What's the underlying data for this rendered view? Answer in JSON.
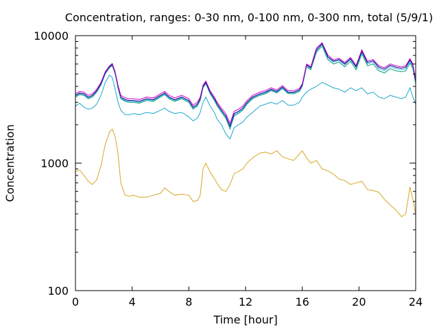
{
  "chart_data": {
    "type": "line",
    "title": "Concentration, ranges: 0-30 nm, 0-100 nm, 0-300 nm, total (5/9/1)",
    "xlabel": "Time [hour]",
    "ylabel": "Concentration",
    "xlim": [
      0,
      24
    ],
    "ylim": [
      100,
      10000
    ],
    "yscale": "log",
    "grid": false,
    "legend": "none",
    "x_ticks": [
      0,
      4,
      8,
      12,
      16,
      20,
      24
    ],
    "x_tick_labels": [
      "0",
      "4",
      "8",
      "12",
      "16",
      "20",
      "24"
    ],
    "y_ticks": [
      100,
      1000,
      10000
    ],
    "y_tick_labels": [
      "100",
      "1000",
      "10000"
    ],
    "series": [
      {
        "color": "#daa520",
        "x": [
          0,
          0.3,
          0.6,
          0.9,
          1.2,
          1.5,
          1.8,
          2.1,
          2.4,
          2.6,
          2.8,
          3.0,
          3.2,
          3.5,
          3.8,
          4.1,
          4.5,
          5.0,
          5.5,
          6.0,
          6.3,
          6.6,
          7.0,
          7.5,
          8.0,
          8.3,
          8.6,
          8.8,
          9.0,
          9.2,
          9.5,
          9.8,
          10.0,
          10.3,
          10.6,
          10.9,
          11.2,
          11.5,
          11.8,
          12.1,
          12.5,
          13.0,
          13.4,
          13.8,
          14.2,
          14.6,
          15.0,
          15.4,
          15.8,
          16.0,
          16.3,
          16.6,
          17.0,
          17.4,
          17.8,
          18.2,
          18.6,
          19.0,
          19.4,
          19.8,
          20.2,
          20.6,
          21.0,
          21.4,
          21.8,
          22.2,
          22.6,
          23.0,
          23.3,
          23.6,
          23.8,
          24.0
        ],
        "values": [
          860,
          880,
          800,
          720,
          680,
          740,
          950,
          1400,
          1750,
          1850,
          1600,
          1200,
          700,
          560,
          550,
          560,
          540,
          540,
          560,
          580,
          640,
          600,
          560,
          570,
          560,
          500,
          510,
          560,
          900,
          1000,
          850,
          760,
          690,
          620,
          600,
          680,
          830,
          860,
          900,
          1000,
          1100,
          1200,
          1220,
          1180,
          1250,
          1120,
          1080,
          1050,
          1180,
          1250,
          1100,
          1000,
          1050,
          900,
          870,
          820,
          750,
          730,
          680,
          700,
          720,
          620,
          610,
          590,
          520,
          470,
          430,
          380,
          400,
          650,
          520,
          400
        ]
      },
      {
        "color": "#1aa6cc",
        "x": [
          0,
          0.3,
          0.6,
          0.9,
          1.2,
          1.5,
          1.8,
          2.1,
          2.4,
          2.6,
          2.8,
          3.0,
          3.2,
          3.5,
          3.8,
          4.1,
          4.5,
          5.0,
          5.5,
          6.0,
          6.3,
          6.6,
          7.0,
          7.5,
          8.0,
          8.3,
          8.6,
          8.8,
          9.0,
          9.2,
          9.5,
          9.8,
          10.0,
          10.3,
          10.6,
          10.9,
          11.2,
          11.5,
          11.8,
          12.1,
          12.5,
          13.0,
          13.4,
          13.8,
          14.2,
          14.6,
          15.0,
          15.4,
          15.8,
          16.0,
          16.3,
          16.6,
          17.0,
          17.4,
          17.8,
          18.2,
          18.6,
          19.0,
          19.4,
          19.8,
          20.2,
          20.6,
          21.0,
          21.4,
          21.8,
          22.2,
          22.6,
          23.0,
          23.3,
          23.6,
          23.8,
          24.0
        ],
        "values": [
          2800,
          2950,
          2750,
          2650,
          2700,
          2900,
          3400,
          4300,
          4900,
          4700,
          3800,
          3000,
          2600,
          2400,
          2400,
          2450,
          2400,
          2500,
          2450,
          2600,
          2700,
          2550,
          2450,
          2500,
          2300,
          2150,
          2250,
          2500,
          3000,
          3300,
          2800,
          2500,
          2200,
          2000,
          1700,
          1550,
          1900,
          2000,
          2100,
          2300,
          2500,
          2800,
          2900,
          3000,
          2900,
          3100,
          2850,
          2850,
          3000,
          3300,
          3600,
          3800,
          4000,
          4300,
          4100,
          3900,
          3800,
          3600,
          3900,
          3700,
          3900,
          3500,
          3600,
          3300,
          3200,
          3400,
          3300,
          3200,
          3300,
          3900,
          3300,
          2900
        ]
      },
      {
        "color": "#009e73",
        "x": [
          0,
          0.3,
          0.6,
          0.9,
          1.2,
          1.5,
          1.8,
          2.1,
          2.4,
          2.6,
          2.8,
          3.0,
          3.2,
          3.5,
          3.8,
          4.1,
          4.5,
          5.0,
          5.5,
          6.0,
          6.3,
          6.6,
          7.0,
          7.5,
          8.0,
          8.3,
          8.6,
          8.8,
          9.0,
          9.2,
          9.5,
          9.8,
          10.0,
          10.3,
          10.6,
          10.9,
          11.2,
          11.5,
          11.8,
          12.1,
          12.5,
          13.0,
          13.4,
          13.8,
          14.2,
          14.6,
          15.0,
          15.4,
          15.8,
          16.0,
          16.3,
          16.6,
          17.0,
          17.4,
          17.8,
          18.2,
          18.6,
          19.0,
          19.4,
          19.8,
          20.2,
          20.6,
          21.0,
          21.4,
          21.8,
          22.2,
          22.6,
          23.0,
          23.3,
          23.6,
          23.8,
          24.0
        ],
        "values": [
          3300,
          3450,
          3400,
          3200,
          3300,
          3600,
          4100,
          5000,
          5600,
          5800,
          5000,
          3900,
          3200,
          3050,
          3000,
          3000,
          2950,
          3100,
          3050,
          3300,
          3450,
          3200,
          3050,
          3200,
          3000,
          2650,
          2800,
          3100,
          3900,
          4200,
          3500,
          3100,
          2800,
          2500,
          2250,
          1850,
          2350,
          2450,
          2600,
          2900,
          3200,
          3400,
          3500,
          3700,
          3550,
          3850,
          3500,
          3500,
          3650,
          4000,
          5700,
          5400,
          7400,
          8300,
          6500,
          6000,
          6200,
          5700,
          6300,
          5400,
          7200,
          5800,
          6000,
          5300,
          5100,
          5500,
          5300,
          5200,
          5300,
          6100,
          5500,
          4200
        ]
      },
      {
        "color": "#56b4e9",
        "x": [
          0,
          0.3,
          0.6,
          0.9,
          1.2,
          1.5,
          1.8,
          2.1,
          2.4,
          2.6,
          2.8,
          3.0,
          3.2,
          3.5,
          3.8,
          4.1,
          4.5,
          5.0,
          5.5,
          6.0,
          6.3,
          6.6,
          7.0,
          7.5,
          8.0,
          8.3,
          8.6,
          8.8,
          9.0,
          9.2,
          9.5,
          9.8,
          10.0,
          10.3,
          10.6,
          10.9,
          11.2,
          11.5,
          11.8,
          12.1,
          12.5,
          13.0,
          13.4,
          13.8,
          14.2,
          14.6,
          15.0,
          15.4,
          15.8,
          16.0,
          16.3,
          16.6,
          17.0,
          17.4,
          17.8,
          18.2,
          18.6,
          19.0,
          19.4,
          19.8,
          20.2,
          20.6,
          21.0,
          21.4,
          21.8,
          22.2,
          22.6,
          23.0,
          23.3,
          23.6,
          23.8,
          24.0
        ],
        "values": [
          3350,
          3500,
          3450,
          3250,
          3350,
          3650,
          4150,
          5050,
          5650,
          5900,
          5050,
          3950,
          3250,
          3100,
          3050,
          3050,
          3000,
          3150,
          3100,
          3350,
          3500,
          3250,
          3100,
          3250,
          3050,
          2700,
          2850,
          3150,
          3950,
          4250,
          3550,
          3150,
          2850,
          2550,
          2300,
          1900,
          2400,
          2500,
          2650,
          2950,
          3250,
          3450,
          3550,
          3750,
          3600,
          3900,
          3550,
          3550,
          3700,
          4050,
          5800,
          5500,
          7600,
          8500,
          6700,
          6200,
          6400,
          5900,
          6500,
          5600,
          7400,
          6000,
          6200,
          5500,
          5300,
          5700,
          5500,
          5400,
          5500,
          6300,
          5700,
          4300
        ]
      },
      {
        "color": "#000080",
        "x": [
          0,
          0.3,
          0.6,
          0.9,
          1.2,
          1.5,
          1.8,
          2.1,
          2.4,
          2.6,
          2.8,
          3.0,
          3.2,
          3.5,
          3.8,
          4.1,
          4.5,
          5.0,
          5.5,
          6.0,
          6.3,
          6.6,
          7.0,
          7.5,
          8.0,
          8.3,
          8.6,
          8.8,
          9.0,
          9.2,
          9.5,
          9.8,
          10.0,
          10.3,
          10.6,
          10.9,
          11.2,
          11.5,
          11.8,
          12.1,
          12.5,
          13.0,
          13.4,
          13.8,
          14.2,
          14.6,
          15.0,
          15.4,
          15.8,
          16.0,
          16.3,
          16.6,
          17.0,
          17.4,
          17.8,
          18.2,
          18.6,
          19.0,
          19.4,
          19.8,
          20.2,
          20.6,
          21.0,
          21.4,
          21.8,
          22.2,
          22.6,
          23.0,
          23.3,
          23.6,
          23.8,
          24.0
        ],
        "values": [
          3400,
          3550,
          3500,
          3300,
          3400,
          3700,
          4200,
          5100,
          5700,
          5950,
          5100,
          4000,
          3300,
          3150,
          3100,
          3100,
          3050,
          3200,
          3150,
          3400,
          3550,
          3300,
          3150,
          3300,
          3100,
          2750,
          2900,
          3200,
          4000,
          4300,
          3600,
          3200,
          2900,
          2600,
          2350,
          1950,
          2450,
          2550,
          2700,
          3000,
          3300,
          3500,
          3600,
          3800,
          3650,
          3950,
          3600,
          3600,
          3750,
          4100,
          5900,
          5600,
          7750,
          8650,
          6850,
          6300,
          6500,
          6000,
          6600,
          5700,
          7550,
          6150,
          6350,
          5650,
          5450,
          5850,
          5650,
          5550,
          5650,
          6450,
          5850,
          4400
        ]
      },
      {
        "color": "#cc00cc",
        "x": [
          0,
          0.3,
          0.6,
          0.9,
          1.2,
          1.5,
          1.8,
          2.1,
          2.4,
          2.6,
          2.8,
          3.0,
          3.2,
          3.5,
          3.8,
          4.1,
          4.5,
          5.0,
          5.5,
          6.0,
          6.3,
          6.6,
          7.0,
          7.5,
          8.0,
          8.3,
          8.6,
          8.8,
          9.0,
          9.2,
          9.5,
          9.8,
          10.0,
          10.3,
          10.6,
          10.9,
          11.2,
          11.5,
          11.8,
          12.1,
          12.5,
          13.0,
          13.4,
          13.8,
          14.2,
          14.6,
          15.0,
          15.4,
          15.8,
          16.0,
          16.3,
          16.6,
          17.0,
          17.4,
          17.8,
          18.2,
          18.6,
          19.0,
          19.4,
          19.8,
          20.2,
          20.6,
          21.0,
          21.4,
          21.8,
          22.2,
          22.6,
          23.0,
          23.3,
          23.6,
          23.8,
          24.0
        ],
        "values": [
          3500,
          3650,
          3600,
          3400,
          3500,
          3800,
          4300,
          5200,
          5800,
          6050,
          5200,
          4100,
          3400,
          3250,
          3200,
          3200,
          3150,
          3300,
          3250,
          3500,
          3650,
          3400,
          3250,
          3400,
          3200,
          2850,
          3000,
          3300,
          4100,
          4400,
          3700,
          3300,
          3000,
          2700,
          2450,
          2050,
          2550,
          2650,
          2800,
          3100,
          3400,
          3600,
          3700,
          3900,
          3750,
          4050,
          3700,
          3700,
          3850,
          4200,
          6000,
          5700,
          8000,
          8800,
          7050,
          6450,
          6650,
          6150,
          6750,
          5850,
          7750,
          6300,
          6500,
          5800,
          5600,
          6000,
          5800,
          5700,
          5800,
          6600,
          6000,
          4500
        ]
      }
    ]
  }
}
